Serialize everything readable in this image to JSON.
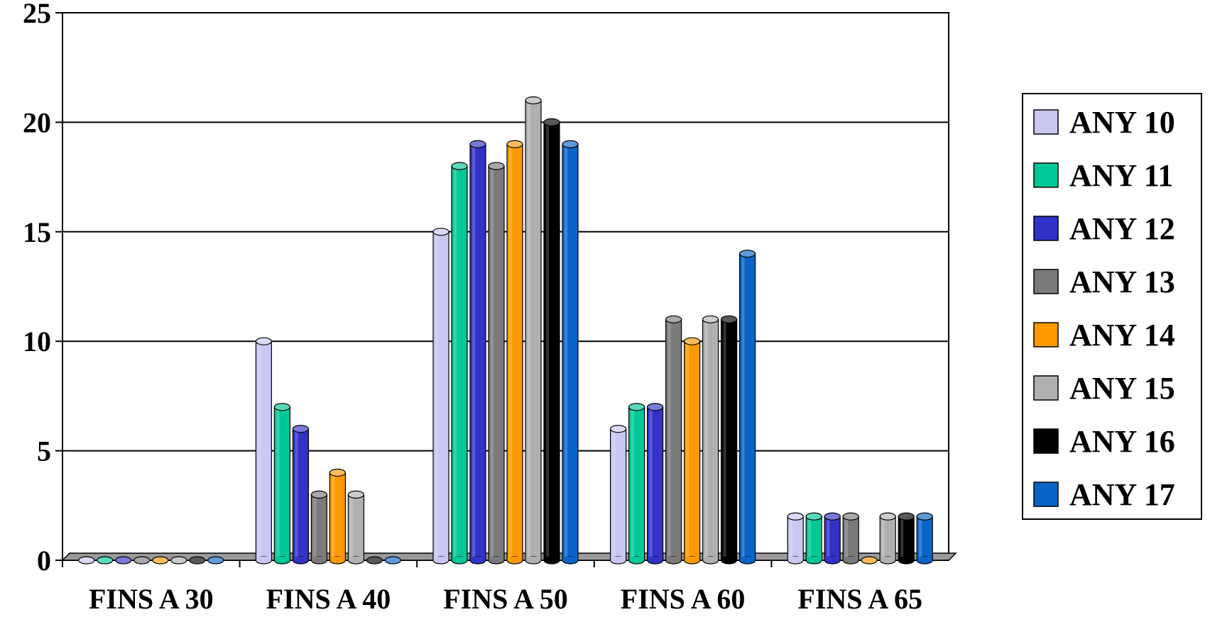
{
  "chart_data": {
    "type": "bar",
    "title": "",
    "xlabel": "",
    "ylabel": "",
    "ylim": [
      0,
      25
    ],
    "yticks": [
      0,
      5,
      10,
      15,
      20,
      25
    ],
    "ytick_labels": [
      "0",
      "5",
      "10",
      "15",
      "20",
      "25"
    ],
    "grid": true,
    "legend_position": "right",
    "categories": [
      "FINS A 30",
      "FINS A 40",
      "FINS A 50",
      "FINS A 60",
      "FINS A 65"
    ],
    "series": [
      {
        "name": "ANY 10",
        "color": "#C8C8F2",
        "values": [
          0,
          10,
          15,
          6,
          2
        ]
      },
      {
        "name": "ANY 11",
        "color": "#00C896",
        "values": [
          0,
          7,
          18,
          7,
          2
        ]
      },
      {
        "name": "ANY 12",
        "color": "#3232C8",
        "values": [
          0,
          6,
          19,
          7,
          2
        ]
      },
      {
        "name": "ANY 13",
        "color": "#7A7A7A",
        "values": [
          0,
          3,
          18,
          11,
          2
        ]
      },
      {
        "name": "ANY 14",
        "color": "#FF9900",
        "values": [
          0,
          4,
          19,
          10,
          0
        ]
      },
      {
        "name": "ANY 15",
        "color": "#B0B0B0",
        "values": [
          0,
          3,
          21,
          11,
          2
        ]
      },
      {
        "name": "ANY 16",
        "color": "#000000",
        "values": [
          0,
          0,
          20,
          11,
          2
        ]
      },
      {
        "name": "ANY 17",
        "color": "#0A64C8",
        "values": [
          0,
          0,
          19,
          14,
          2
        ]
      }
    ]
  }
}
